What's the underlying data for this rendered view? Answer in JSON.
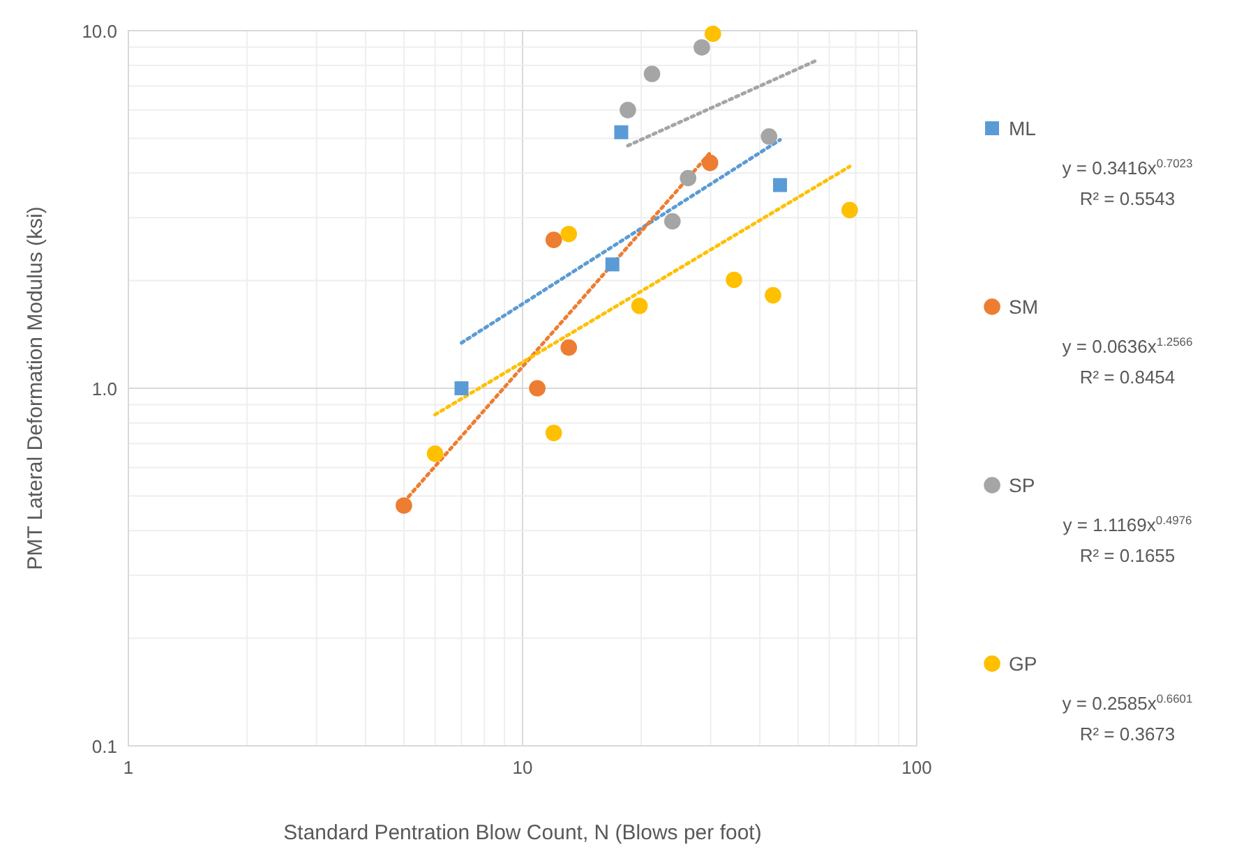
{
  "chart_data": {
    "type": "scatter",
    "xlabel": "Standard Pentration Blow Count, N (Blows per foot)",
    "ylabel": "PMT Lateral Deformation Modulus (ksi)",
    "log": "xy",
    "grid": true,
    "legend": "right",
    "xlim": [
      1,
      100
    ],
    "ylim": [
      0.1,
      10
    ],
    "xticks": [
      1,
      10,
      100
    ],
    "yticks": [
      {
        "value": 0.1,
        "label": "0.1"
      },
      {
        "value": 1,
        "label": "1.0"
      },
      {
        "value": 10,
        "label": "10.0"
      }
    ],
    "series": [
      {
        "name": "ML",
        "color": "#5b9bd5",
        "marker": "square",
        "x": [
          7.0,
          17.8,
          16.9,
          45
        ],
        "values": [
          1.0,
          5.2,
          2.22,
          3.7
        ]
      },
      {
        "name": "SM",
        "color": "#ed7d31",
        "marker": "circle",
        "x": [
          5.0,
          10.9,
          13.1,
          12.0,
          29.9
        ],
        "values": [
          0.47,
          1.0,
          1.3,
          2.6,
          4.27
        ]
      },
      {
        "name": "SP",
        "color": "#a5a5a5",
        "marker": "circle",
        "x": [
          18.5,
          21.3,
          28.5,
          42.2,
          26.3,
          24.0
        ],
        "values": [
          6.0,
          7.57,
          8.98,
          5.06,
          3.87,
          2.93
        ]
      },
      {
        "name": "GP",
        "color": "#ffc000",
        "marker": "circle",
        "x": [
          30.4,
          13.1,
          67.6,
          34.4,
          43.2,
          19.8,
          12.0,
          6.0
        ],
        "values": [
          9.8,
          2.7,
          3.15,
          2.01,
          1.82,
          1.7,
          0.75,
          0.656
        ]
      },
      {
        "type": "line",
        "color": "#5b9bd5",
        "marker": "none",
        "line_style": "dotted",
        "x": [
          7,
          45
        ],
        "values": [
          1.34,
          4.95
        ]
      },
      {
        "type": "line",
        "color": "#ed7d31",
        "marker": "none",
        "line_style": "dotted",
        "x": [
          5,
          30
        ],
        "values": [
          0.481,
          4.57
        ]
      },
      {
        "type": "line",
        "color": "#a5a5a5",
        "marker": "none",
        "line_style": "dotted",
        "x": [
          18.5,
          55.6
        ],
        "values": [
          4.77,
          8.25
        ]
      },
      {
        "type": "line",
        "color": "#ffc000",
        "marker": "none",
        "line_style": "dotted",
        "x": [
          6,
          67.6
        ],
        "values": [
          0.844,
          4.17
        ]
      }
    ],
    "annotations": [
      "y = 0.3416x$^{0.7023}$",
      "R² = 0.5543",
      "y = 0.0636x$^{1.2566}$",
      "R² = 0.8454",
      "y = 1.1169x$^{0.4976}$",
      "R² = 0.1655",
      "y = 0.2585x$^{0.6601}$",
      "R² = 0.3673"
    ]
  }
}
